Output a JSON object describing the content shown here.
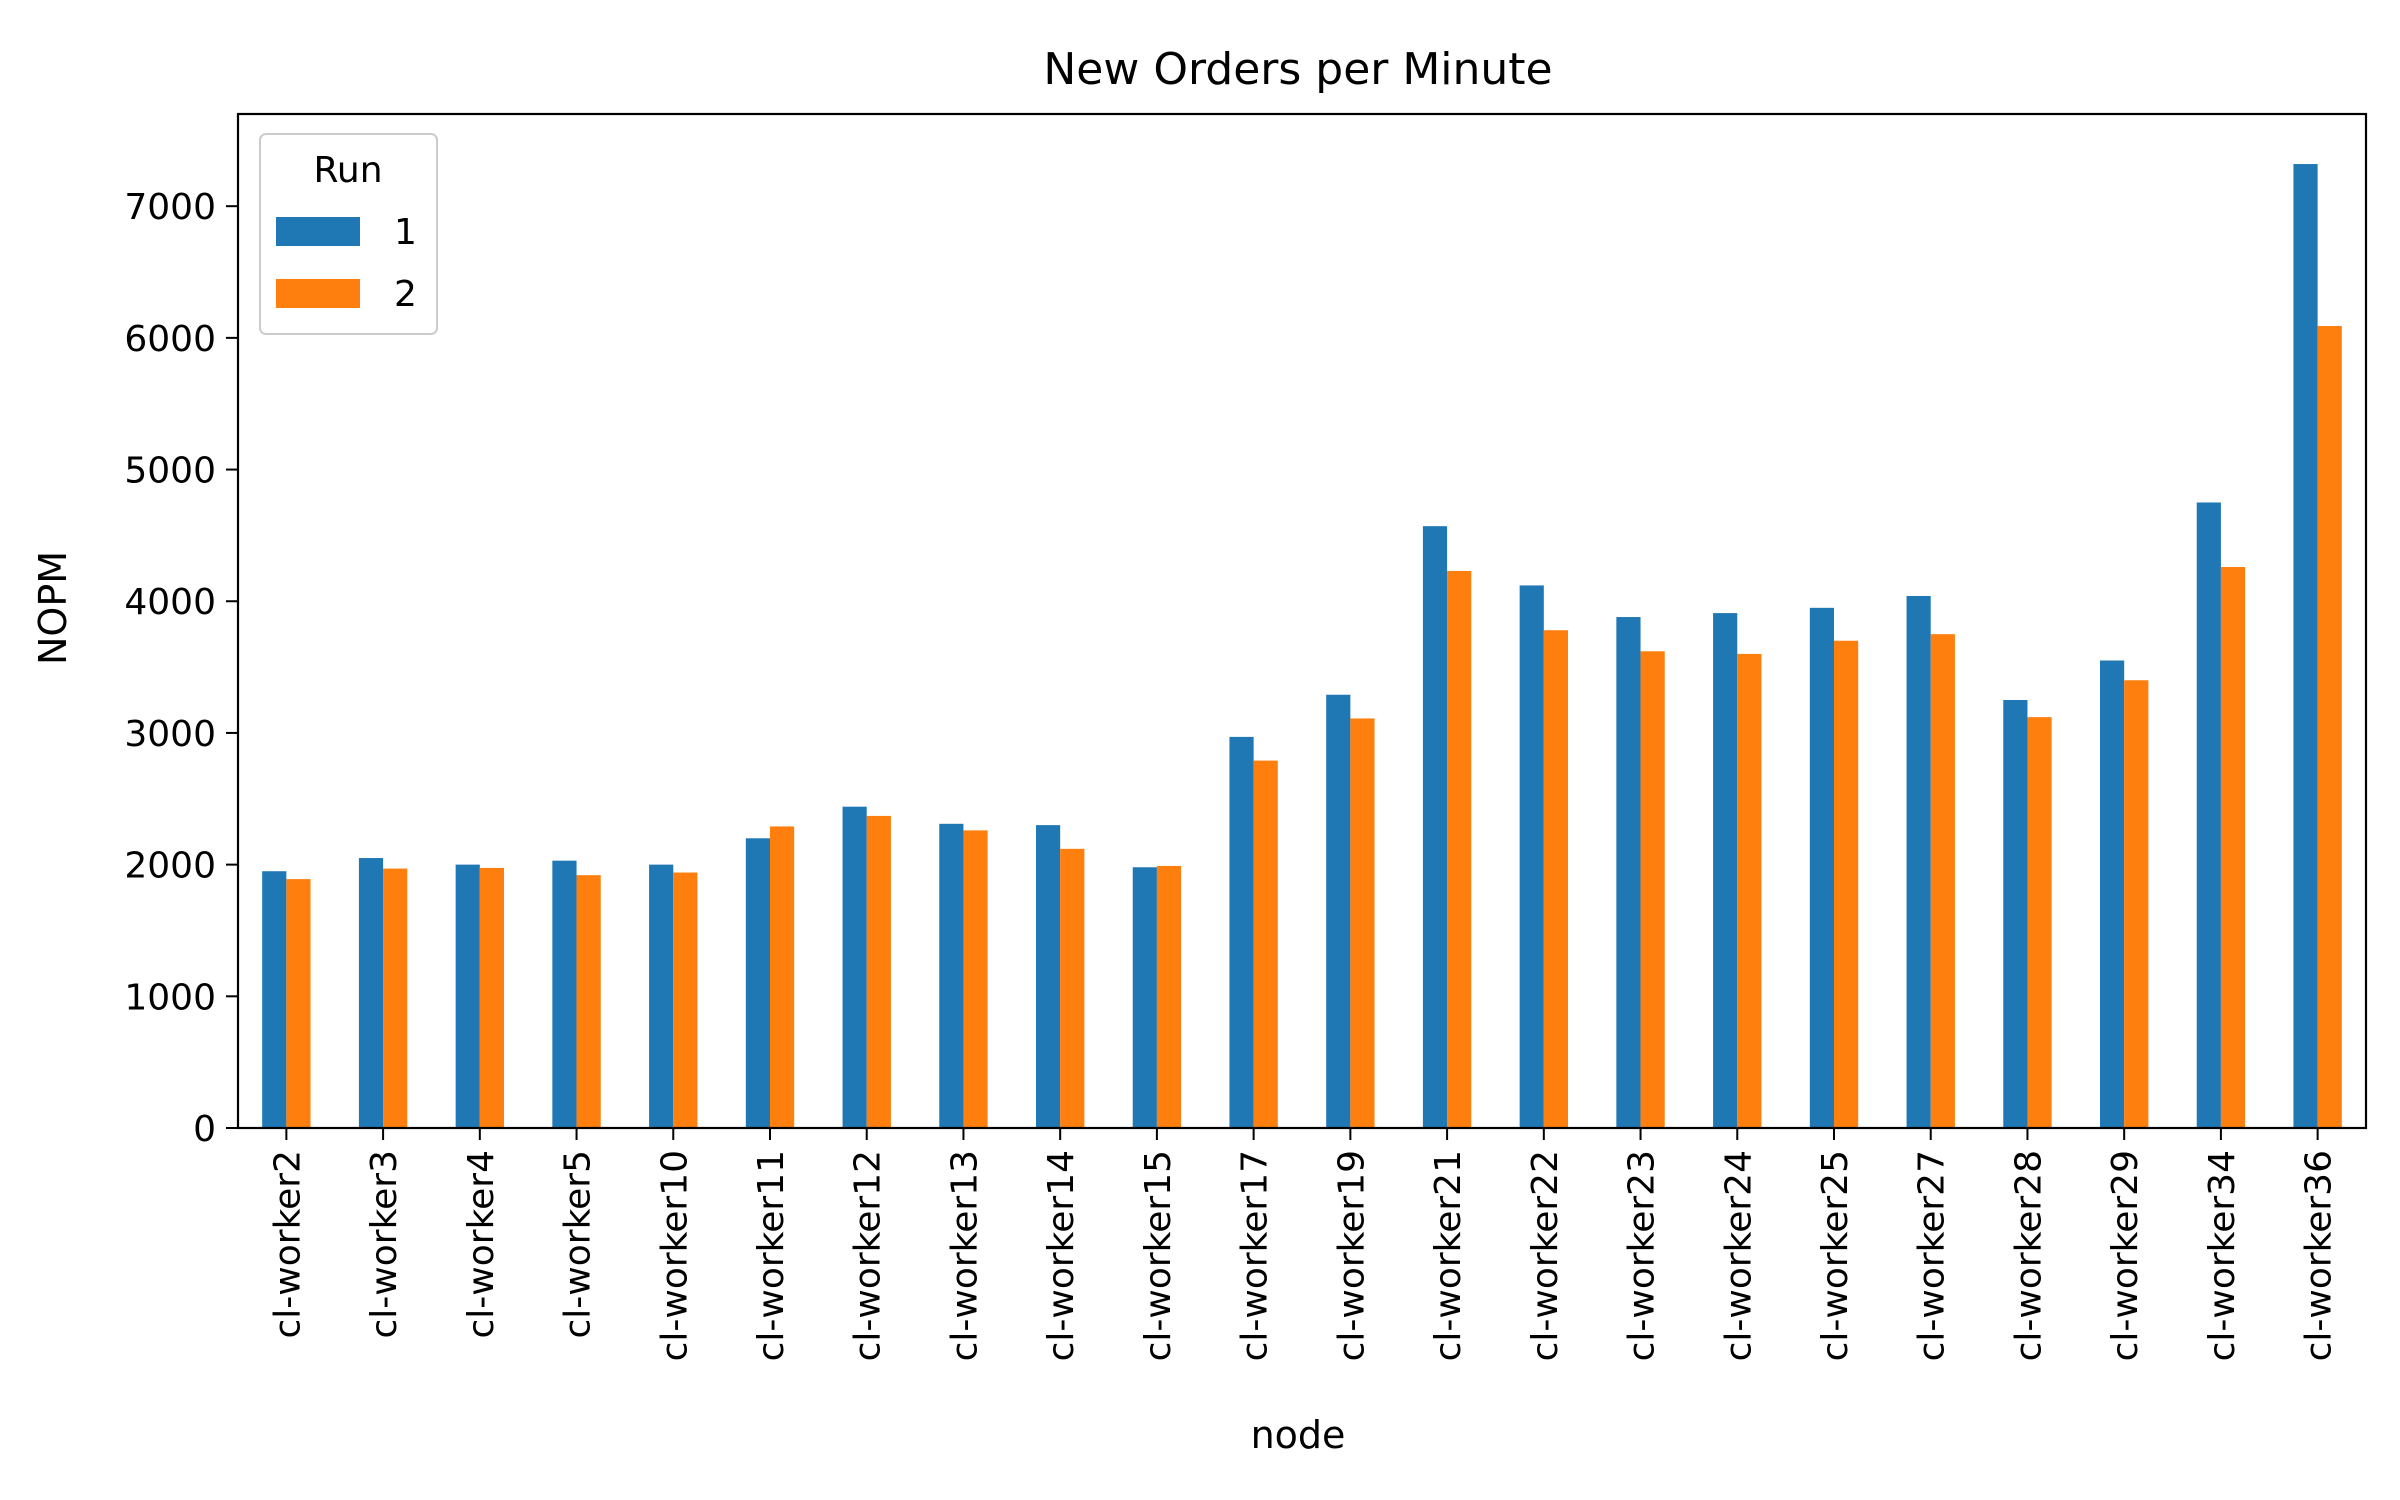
{
  "chart_data": {
    "type": "bar",
    "title": "New Orders per Minute",
    "xlabel": "node",
    "ylabel": "NOPM",
    "ylim": [
      0,
      7700
    ],
    "yticks": [
      0,
      1000,
      2000,
      3000,
      4000,
      5000,
      6000,
      7000
    ],
    "grid": false,
    "legend": {
      "title": "Run",
      "placement": "top-left"
    },
    "categories": [
      "cl-worker2",
      "cl-worker3",
      "cl-worker4",
      "cl-worker5",
      "cl-worker10",
      "cl-worker11",
      "cl-worker12",
      "cl-worker13",
      "cl-worker14",
      "cl-worker15",
      "cl-worker17",
      "cl-worker19",
      "cl-worker21",
      "cl-worker22",
      "cl-worker23",
      "cl-worker24",
      "cl-worker25",
      "cl-worker27",
      "cl-worker28",
      "cl-worker29",
      "cl-worker34",
      "cl-worker36"
    ],
    "series": [
      {
        "name": "1",
        "color": "#1f77b4",
        "values": [
          1950,
          2050,
          2000,
          2030,
          2000,
          2200,
          2440,
          2310,
          2300,
          1980,
          2970,
          3290,
          4570,
          4120,
          3880,
          3910,
          3950,
          4040,
          3250,
          3550,
          4750,
          7320
        ]
      },
      {
        "name": "2",
        "color": "#ff7f0e",
        "values": [
          1890,
          1970,
          1975,
          1920,
          1940,
          2290,
          2370,
          2260,
          2120,
          1990,
          2790,
          3110,
          4230,
          3780,
          3620,
          3600,
          3700,
          3750,
          3120,
          3400,
          4260,
          6090
        ]
      }
    ]
  }
}
